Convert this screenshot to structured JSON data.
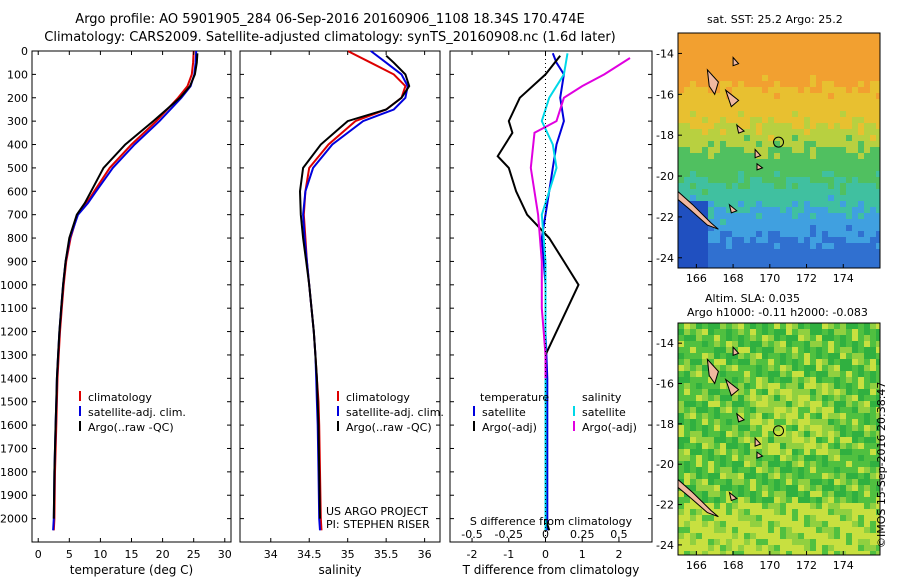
{
  "header": {
    "line1": "Argo profile: AO 5901905_284 06-Sep-2016 20160906_1108 18.34S 170.474E",
    "line2": "Climatology: CARS2009. Satellite-adjusted climatology: synTS_20160908.nc (1.6d later)"
  },
  "colors": {
    "climatology": "#dd0000",
    "satellite": "#0000dd",
    "argo": "#000000",
    "satellite_s": "#00d8e8",
    "argo_s": "#e000e0"
  },
  "chart_data": [
    {
      "type": "line",
      "xlabel": "temperature (deg C)",
      "ylabel": "",
      "xlim": [
        -1,
        31
      ],
      "ylim": [
        2100,
        0
      ],
      "xticks": [
        0,
        5,
        10,
        15,
        20,
        25,
        30
      ],
      "yticks": [
        0,
        100,
        200,
        300,
        400,
        500,
        600,
        700,
        800,
        900,
        1000,
        1100,
        1200,
        1300,
        1400,
        1500,
        1600,
        1700,
        1800,
        1900,
        2000
      ],
      "legend": [
        "climatology",
        "satellite-adj. clim.",
        "Argo(..raw -QC)"
      ],
      "series": [
        {
          "name": "climatology",
          "color": "#dd0000",
          "x": [
            25.0,
            24.9,
            24.7,
            24.0,
            22.5,
            19.0,
            15.0,
            11.5,
            9.0,
            7.8,
            6.3,
            5.2,
            4.5,
            4.1,
            3.8,
            3.5,
            3.3,
            3.1,
            3.0,
            2.9,
            2.7,
            2.6,
            2.5
          ],
          "y": [
            0,
            50,
            100,
            150,
            200,
            300,
            400,
            500,
            600,
            650,
            700,
            800,
            900,
            1000,
            1100,
            1200,
            1300,
            1400,
            1500,
            1600,
            1800,
            2000,
            2050
          ]
        },
        {
          "name": "satellite-adj. clim.",
          "color": "#0000dd",
          "x": [
            25.4,
            25.3,
            25.1,
            24.5,
            23.0,
            19.5,
            15.5,
            12.0,
            9.3,
            8.0,
            6.4,
            5.1,
            4.4,
            4.0,
            3.7,
            3.4,
            3.2,
            3.0,
            2.9,
            2.8,
            2.6,
            2.5,
            2.4
          ],
          "y": [
            0,
            50,
            100,
            150,
            200,
            300,
            400,
            500,
            600,
            650,
            700,
            800,
            900,
            1000,
            1100,
            1200,
            1300,
            1400,
            1500,
            1600,
            1800,
            2000,
            2050
          ]
        },
        {
          "name": "Argo(..raw -QC)",
          "color": "#000000",
          "x": [
            25.6,
            25.5,
            25.2,
            24.4,
            22.8,
            18.5,
            14.0,
            10.5,
            8.5,
            7.5,
            6.2,
            5.0,
            4.4,
            4.0,
            3.7,
            3.4,
            3.2,
            3.0,
            2.9,
            2.8,
            2.6,
            2.5
          ],
          "y": [
            10,
            50,
            100,
            150,
            200,
            300,
            400,
            500,
            600,
            650,
            700,
            800,
            900,
            1000,
            1100,
            1200,
            1300,
            1400,
            1500,
            1600,
            1800,
            2000
          ]
        }
      ],
      "annotations": []
    },
    {
      "type": "line",
      "xlabel": "salinity",
      "ylabel": "",
      "xlim": [
        33.6,
        36.2
      ],
      "ylim": [
        2100,
        0
      ],
      "xticks": [
        34,
        34.5,
        35,
        35.5,
        36
      ],
      "legend": [
        "climatology",
        "satellite-adj. clim.",
        "Argo(..raw -QC)"
      ],
      "series": [
        {
          "name": "climatology",
          "color": "#dd0000",
          "x": [
            35.0,
            35.3,
            35.6,
            35.75,
            35.7,
            35.5,
            35.1,
            34.75,
            34.5,
            34.45,
            34.43,
            34.45,
            34.47,
            34.5,
            34.53,
            34.56,
            34.58,
            34.6,
            34.62,
            34.63,
            34.64,
            34.65,
            34.66
          ],
          "y": [
            0,
            50,
            100,
            150,
            200,
            250,
            300,
            400,
            500,
            600,
            700,
            800,
            900,
            1000,
            1100,
            1200,
            1300,
            1400,
            1500,
            1600,
            1800,
            2000,
            2050
          ]
        },
        {
          "name": "satellite-adj. clim.",
          "color": "#0000dd",
          "x": [
            35.3,
            35.5,
            35.7,
            35.78,
            35.75,
            35.6,
            35.2,
            34.8,
            34.55,
            34.45,
            34.42,
            34.44,
            34.47,
            34.5,
            34.53,
            34.56,
            34.58,
            34.59,
            34.6,
            34.61,
            34.62,
            34.63,
            34.64
          ],
          "y": [
            0,
            50,
            100,
            150,
            200,
            250,
            300,
            400,
            500,
            600,
            700,
            800,
            900,
            1000,
            1100,
            1200,
            1300,
            1400,
            1500,
            1600,
            1800,
            2000,
            2050
          ]
        },
        {
          "name": "Argo(..raw -QC)",
          "color": "#000000",
          "x": [
            35.5,
            35.6,
            35.75,
            35.8,
            35.7,
            35.5,
            35.0,
            34.65,
            34.42,
            34.38,
            34.39,
            34.42,
            34.46,
            34.5,
            34.53,
            34.56,
            34.58,
            34.6,
            34.61,
            34.62,
            34.63,
            34.64
          ],
          "y": [
            20,
            50,
            100,
            150,
            200,
            250,
            300,
            400,
            500,
            600,
            700,
            800,
            900,
            1000,
            1100,
            1200,
            1300,
            1400,
            1500,
            1600,
            1800,
            2000
          ]
        }
      ],
      "annotations": [
        "US ARGO PROJECT",
        "PI: STEPHEN RISER"
      ]
    },
    {
      "type": "line",
      "xlabel_s": "S difference from climatology",
      "xlabel_t": "T difference from climatology",
      "xlim": [
        -2.6,
        2.9
      ],
      "ylim": [
        2100,
        0
      ],
      "xticks_t": [
        -2,
        -1,
        0,
        1,
        2
      ],
      "xticklabels_s": [
        "-0.5",
        "-0.25",
        "0",
        "0.25",
        "0.5"
      ],
      "legend_headers": [
        "temperature",
        "salinity"
      ],
      "legend": [
        "satellite",
        "Argo(-adj)",
        "satellite",
        "Argo(-adj)"
      ],
      "series": [
        {
          "name": "satellite (T)",
          "color": "#0000dd",
          "x": [
            0.2,
            0.3,
            0.5,
            0.4,
            0.5,
            0.3,
            0.2,
            0.1,
            0.0,
            -0.1,
            -0.05,
            0.0,
            0.0,
            0.05,
            0.05,
            0.05,
            0.05,
            0.05,
            0.05
          ],
          "y": [
            10,
            50,
            100,
            200,
            300,
            400,
            500,
            600,
            700,
            800,
            900,
            1000,
            1200,
            1400,
            1600,
            1700,
            1800,
            1900,
            2050
          ]
        },
        {
          "name": "Argo(-adj) (T)",
          "color": "#000000",
          "x": [
            0.4,
            0.0,
            -0.7,
            -1.0,
            -0.9,
            -1.3,
            -1.0,
            -0.8,
            -0.5,
            0.1,
            0.5,
            0.9,
            0.6,
            0.3,
            0.0,
            0.0,
            0.0,
            0.0,
            0.0,
            0.0,
            0.1
          ],
          "y": [
            20,
            100,
            200,
            300,
            350,
            450,
            500,
            600,
            700,
            800,
            900,
            1000,
            1100,
            1200,
            1300,
            1400,
            1500,
            1600,
            1800,
            2000,
            2050
          ]
        },
        {
          "name": "satellite (S)",
          "color": "#00d8e8",
          "x": [
            0.6,
            0.5,
            0.1,
            -0.1,
            0.2,
            0.3,
            0.1,
            -0.1,
            -0.05,
            0.0,
            0.0,
            0.0,
            0.0
          ],
          "y": [
            10,
            100,
            200,
            300,
            400,
            500,
            600,
            700,
            800,
            900,
            1200,
            1600,
            2050
          ]
        },
        {
          "name": "Argo(-adj) (S)",
          "color": "#e000e0",
          "x": [
            2.3,
            1.6,
            1.0,
            0.5,
            0.3,
            -0.3,
            -0.4,
            -0.2,
            -0.1,
            -0.1,
            -0.05,
            0.0,
            0.0
          ],
          "y": [
            30,
            100,
            150,
            200,
            300,
            350,
            500,
            700,
            900,
            1100,
            1200,
            1300,
            1400
          ]
        }
      ],
      "annotations": []
    }
  ],
  "maps": [
    {
      "caption": [
        "sat. SST: 25.2 Argo: 25.2"
      ],
      "lat_ticks": [
        "-14",
        "-16",
        "-18",
        "-20",
        "-22",
        "-24"
      ],
      "lon_ticks": [
        "166",
        "168",
        "170",
        "172",
        "174"
      ]
    },
    {
      "caption": [
        "Altim. SLA: 0.035",
        "Argo h1000: -0.11 h2000: -0.083"
      ],
      "lat_ticks": [
        "-14",
        "-16",
        "-18",
        "-20",
        "-22",
        "-24"
      ],
      "lon_ticks": [
        "166",
        "168",
        "170",
        "172",
        "174"
      ]
    }
  ],
  "credit": "©IMOS 15-Sep-2016 20:38:47"
}
